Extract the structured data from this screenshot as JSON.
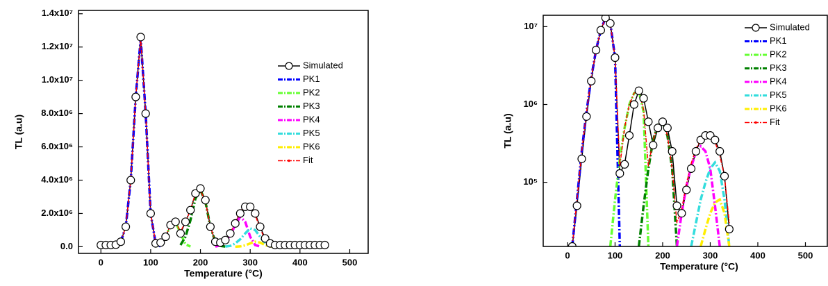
{
  "chart_data": [
    {
      "type": "line",
      "log_y": false,
      "x_label": "Temperature (°C)",
      "y_label": "TL (a.u)",
      "legend": "upper right",
      "xlim": [
        -45,
        537
      ],
      "ylim": [
        -400000,
        14200000
      ],
      "xticks": [
        0,
        100,
        200,
        300,
        400,
        500
      ],
      "yticks": [
        {
          "value": 0,
          "label": "0.0"
        },
        {
          "value": 2000000,
          "label": "2.0x10⁶"
        },
        {
          "value": 4000000,
          "label": "4.0x10⁶"
        },
        {
          "value": 6000000,
          "label": "6.0x10⁶"
        },
        {
          "value": 8000000,
          "label": "8.0x10⁶"
        },
        {
          "value": 10000000,
          "label": "1.0x10⁷"
        },
        {
          "value": 12000000,
          "label": "1.2x10⁷"
        },
        {
          "value": 14000000,
          "label": "1.4x10⁷"
        }
      ],
      "series": [
        {
          "name": "Simulated",
          "color": "#000000",
          "marker": "circle",
          "linestyle": "solid",
          "linewidth": 1.5,
          "x": [
            0,
            10,
            20,
            30,
            40,
            50,
            60,
            70,
            80,
            90,
            100,
            110,
            120,
            130,
            140,
            150,
            160,
            170,
            180,
            190,
            200,
            210,
            220,
            230,
            240,
            250,
            260,
            270,
            280,
            290,
            300,
            310,
            320,
            330,
            340,
            350,
            360,
            370,
            380,
            390,
            400,
            410,
            420,
            430,
            440,
            450
          ],
          "values": [
            100000,
            100000,
            100000,
            120000,
            300000,
            1200000,
            4000000,
            9000000,
            12600000,
            8000000,
            2000000,
            200000,
            250000,
            600000,
            1300000,
            1500000,
            800000,
            1500000,
            2200000,
            3200000,
            3500000,
            2800000,
            1200000,
            300000,
            250000,
            400000,
            800000,
            1400000,
            2000000,
            2400000,
            2400000,
            2000000,
            1200000,
            500000,
            200000,
            100000,
            100000,
            100000,
            100000,
            100000,
            100000,
            100000,
            100000,
            100000,
            100000,
            100000
          ]
        },
        {
          "name": "PK1",
          "color": "#0000ff",
          "linestyle": "dashdot",
          "linewidth": 3.5,
          "x": [
            40,
            50,
            60,
            70,
            80,
            90,
            100,
            110,
            120
          ],
          "values": [
            300000,
            1200000,
            4000000,
            9000000,
            12500000,
            8000000,
            2000000,
            200000,
            10000
          ]
        },
        {
          "name": "PK2",
          "color": "#66ff33",
          "linestyle": "dashdot",
          "linewidth": 3.5,
          "x": [
            110,
            120,
            130,
            140,
            150,
            160,
            170,
            180
          ],
          "values": [
            10000,
            150000,
            600000,
            1300000,
            1500000,
            800000,
            150000,
            10000
          ]
        },
        {
          "name": "PK3",
          "color": "#008000",
          "linestyle": "dashdot",
          "linewidth": 3.5,
          "x": [
            160,
            170,
            180,
            190,
            200,
            210,
            220,
            230,
            240,
            250
          ],
          "values": [
            100000,
            600000,
            1600000,
            2900000,
            3400000,
            2700000,
            1200000,
            300000,
            50000,
            10000
          ]
        },
        {
          "name": "PK4",
          "color": "#ff00ff",
          "linestyle": "dashdot",
          "linewidth": 3.5,
          "x": [
            230,
            240,
            250,
            260,
            270,
            280,
            290,
            300,
            310,
            320
          ],
          "values": [
            10000,
            80000,
            300000,
            700000,
            1300000,
            1800000,
            1500000,
            600000,
            100000,
            10000
          ]
        },
        {
          "name": "PK5",
          "color": "#33dddd",
          "linestyle": "dashdot",
          "linewidth": 3.5,
          "x": [
            250,
            260,
            270,
            280,
            290,
            300,
            310,
            320,
            330,
            340,
            350
          ],
          "values": [
            10000,
            50000,
            200000,
            450000,
            800000,
            1100000,
            1000000,
            600000,
            200000,
            30000,
            0
          ]
        },
        {
          "name": "PK6",
          "color": "#ffee00",
          "linestyle": "dashdot",
          "linewidth": 3.5,
          "x": [
            270,
            280,
            290,
            300,
            310,
            320,
            330,
            340,
            350
          ],
          "values": [
            0,
            20000,
            80000,
            200000,
            300000,
            250000,
            100000,
            20000,
            0
          ]
        },
        {
          "name": "Fit",
          "color": "#ff0000",
          "linestyle": "dashdotthin",
          "linewidth": 1.5,
          "x": [
            40,
            50,
            60,
            70,
            80,
            90,
            100,
            110,
            120,
            130,
            140,
            150,
            160,
            170,
            180,
            190,
            200,
            210,
            220,
            230,
            240,
            250,
            260,
            270,
            280,
            290,
            300,
            310,
            320,
            330,
            340,
            350
          ],
          "values": [
            300000,
            1200000,
            4000000,
            9000000,
            12500000,
            8000000,
            2000000,
            210000,
            160000,
            600000,
            1300000,
            1500000,
            900000,
            1500000,
            2200000,
            3200000,
            3400000,
            2700000,
            1200000,
            300000,
            250000,
            400000,
            800000,
            1500000,
            2100000,
            2500000,
            2400000,
            1900000,
            1100000,
            400000,
            150000,
            100000
          ]
        }
      ]
    },
    {
      "type": "line",
      "log_y": true,
      "x_label": "Temperature (°C)",
      "y_label": "TL (a.u)",
      "legend": "upper right",
      "xlim": [
        -51,
        546
      ],
      "ylim": [
        15000,
        14000000
      ],
      "xticks": [
        0,
        100,
        200,
        300,
        400,
        500
      ],
      "yticks": [
        {
          "value": 100000,
          "label": "10⁵"
        },
        {
          "value": 1000000,
          "label": "10⁶"
        },
        {
          "value": 10000000,
          "label": "10⁷"
        }
      ],
      "series": [
        {
          "name": "Simulated",
          "color": "#000000",
          "marker": "circle",
          "linestyle": "solid",
          "linewidth": 1.5,
          "x": [
            10,
            20,
            30,
            40,
            50,
            60,
            70,
            80,
            90,
            100,
            110,
            120,
            130,
            140,
            150,
            160,
            170,
            180,
            190,
            200,
            210,
            220,
            230,
            240,
            250,
            260,
            270,
            280,
            290,
            300,
            310,
            320,
            330,
            340
          ],
          "values": [
            15000,
            50000,
            200000,
            700000,
            2000000,
            5000000,
            9000000,
            13000000,
            11000000,
            4000000,
            130000,
            170000,
            400000,
            1000000,
            1500000,
            1200000,
            600000,
            300000,
            500000,
            600000,
            500000,
            250000,
            50000,
            40000,
            80000,
            150000,
            250000,
            350000,
            400000,
            400000,
            350000,
            250000,
            120000,
            25000
          ]
        },
        {
          "name": "PK1",
          "color": "#0000ff",
          "linestyle": "dashdot",
          "linewidth": 3.5,
          "x": [
            10,
            20,
            30,
            40,
            50,
            60,
            70,
            80,
            90,
            100,
            110
          ],
          "values": [
            15000,
            60000,
            250000,
            800000,
            2200000,
            5000000,
            9000000,
            13000000,
            11000000,
            4000000,
            15000
          ]
        },
        {
          "name": "PK2",
          "color": "#66ff33",
          "linestyle": "dashdot",
          "linewidth": 3.5,
          "x": [
            90,
            100,
            110,
            120,
            130,
            140,
            150,
            160,
            170
          ],
          "values": [
            15000,
            60000,
            200000,
            500000,
            1000000,
            1400000,
            1500000,
            800000,
            15000
          ]
        },
        {
          "name": "PK3",
          "color": "#008000",
          "linestyle": "dashdot",
          "linewidth": 3.5,
          "x": [
            150,
            160,
            170,
            180,
            190,
            200,
            210,
            220,
            230
          ],
          "values": [
            15000,
            50000,
            150000,
            350000,
            550000,
            600000,
            400000,
            150000,
            15000
          ]
        },
        {
          "name": "PK4",
          "color": "#ff00ff",
          "linestyle": "dashdot",
          "linewidth": 3.5,
          "x": [
            230,
            240,
            250,
            260,
            270,
            280,
            290,
            300,
            310,
            320
          ],
          "values": [
            15000,
            40000,
            90000,
            160000,
            240000,
            290000,
            250000,
            150000,
            50000,
            15000
          ]
        },
        {
          "name": "PK5",
          "color": "#33dddd",
          "linestyle": "dashdot",
          "linewidth": 3.5,
          "x": [
            260,
            270,
            280,
            290,
            300,
            310,
            320,
            330,
            340
          ],
          "values": [
            15000,
            30000,
            60000,
            100000,
            150000,
            180000,
            140000,
            60000,
            15000
          ]
        },
        {
          "name": "PK6",
          "color": "#ffee00",
          "linestyle": "dashdot",
          "linewidth": 3.5,
          "x": [
            280,
            290,
            300,
            310,
            320,
            330,
            340
          ],
          "values": [
            15000,
            25000,
            40000,
            55000,
            60000,
            40000,
            15000
          ]
        },
        {
          "name": "Fit",
          "color": "#ff0000",
          "linestyle": "dashdotthin",
          "linewidth": 1.5,
          "x": [
            10,
            20,
            30,
            40,
            50,
            60,
            70,
            80,
            90,
            100,
            110,
            120,
            130,
            140,
            150,
            160,
            170,
            180,
            190,
            200,
            210,
            220,
            230,
            240,
            250,
            260,
            270,
            280,
            290,
            300,
            310,
            320,
            330,
            340
          ],
          "values": [
            15000,
            60000,
            250000,
            800000,
            2200000,
            5000000,
            9000000,
            13000000,
            11000000,
            4000000,
            160000,
            500000,
            1000000,
            1400000,
            1500000,
            850000,
            160000,
            350000,
            550000,
            600000,
            400000,
            150000,
            30000,
            45000,
            95000,
            175000,
            270000,
            350000,
            410000,
            390000,
            330000,
            220000,
            120000,
            30000
          ]
        }
      ]
    }
  ]
}
